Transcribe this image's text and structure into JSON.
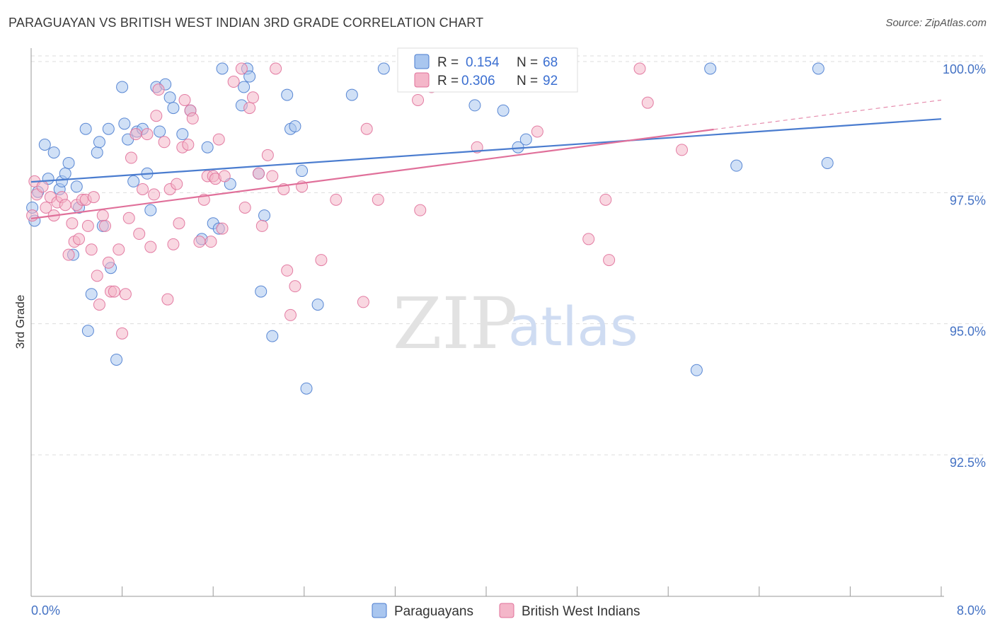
{
  "title": "PARAGUAYAN VS BRITISH WEST INDIAN 3RD GRADE CORRELATION CHART",
  "source": "Source: ZipAtlas.com",
  "watermark": {
    "zip": "ZIP",
    "atlas": "atlas"
  },
  "colors": {
    "blue": "#4a7ccf",
    "blue_fill": "#a9c6ef",
    "pink": "#e0709a",
    "pink_fill": "#f4b6c9",
    "grid": "#dddddd",
    "axis": "#999999"
  },
  "chart_data": {
    "type": "scatter",
    "title": "PARAGUAYAN VS BRITISH WEST INDIAN 3RD GRADE CORRELATION CHART",
    "xlabel": "",
    "ylabel": "3rd Grade",
    "xlim": [
      0.0,
      8.0
    ],
    "ylim": [
      90.0,
      100.5
    ],
    "x_tick_labels": [
      "0.0%",
      "8.0%"
    ],
    "y_ticks": [
      92.5,
      95.0,
      97.5,
      100.0
    ],
    "y_tick_labels": [
      "92.5%",
      "95.0%",
      "97.5%",
      "100.0%"
    ],
    "legend": {
      "items": [
        {
          "r_label": "R =",
          "r": "0.154",
          "n_label": "N =",
          "n": "68"
        },
        {
          "r_label": "R =",
          "r": "0.306",
          "n_label": "N =",
          "n": "92"
        }
      ]
    },
    "series": [
      {
        "name": "Paraguayans",
        "trend": {
          "x0": 0.0,
          "y0": 97.84,
          "x1": 8.0,
          "y1": 99.04,
          "dashed_to": null
        },
        "points": [
          [
            0.01,
            97.35
          ],
          [
            0.03,
            97.1
          ],
          [
            0.06,
            97.65
          ],
          [
            0.12,
            98.55
          ],
          [
            0.15,
            97.9
          ],
          [
            0.2,
            98.4
          ],
          [
            0.25,
            97.7
          ],
          [
            0.27,
            97.85
          ],
          [
            0.3,
            98.0
          ],
          [
            0.33,
            98.2
          ],
          [
            0.37,
            96.45
          ],
          [
            0.4,
            97.75
          ],
          [
            0.42,
            97.35
          ],
          [
            0.48,
            98.85
          ],
          [
            0.5,
            95.0
          ],
          [
            0.53,
            95.7
          ],
          [
            0.58,
            98.4
          ],
          [
            0.6,
            98.6
          ],
          [
            0.63,
            97.0
          ],
          [
            0.68,
            98.85
          ],
          [
            0.7,
            96.2
          ],
          [
            0.75,
            94.45
          ],
          [
            0.8,
            99.65
          ],
          [
            0.82,
            98.95
          ],
          [
            0.85,
            98.65
          ],
          [
            0.9,
            97.85
          ],
          [
            0.93,
            98.8
          ],
          [
            0.98,
            98.85
          ],
          [
            1.02,
            98.0
          ],
          [
            1.05,
            97.3
          ],
          [
            1.1,
            99.65
          ],
          [
            1.13,
            98.8
          ],
          [
            1.18,
            99.7
          ],
          [
            1.22,
            99.45
          ],
          [
            1.25,
            99.25
          ],
          [
            1.33,
            98.75
          ],
          [
            1.4,
            99.2
          ],
          [
            1.5,
            96.75
          ],
          [
            1.55,
            98.5
          ],
          [
            1.6,
            97.05
          ],
          [
            1.65,
            96.95
          ],
          [
            1.68,
            100.0
          ],
          [
            1.75,
            97.8
          ],
          [
            1.85,
            99.3
          ],
          [
            1.87,
            99.65
          ],
          [
            1.9,
            100.0
          ],
          [
            1.92,
            99.85
          ],
          [
            2.0,
            98.0
          ],
          [
            2.02,
            95.75
          ],
          [
            2.05,
            97.2
          ],
          [
            2.12,
            94.9
          ],
          [
            2.25,
            99.5
          ],
          [
            2.28,
            98.85
          ],
          [
            2.32,
            98.9
          ],
          [
            2.38,
            98.05
          ],
          [
            2.42,
            93.9
          ],
          [
            2.52,
            95.5
          ],
          [
            2.82,
            99.5
          ],
          [
            3.1,
            100.0
          ],
          [
            3.9,
            99.3
          ],
          [
            4.15,
            99.2
          ],
          [
            4.28,
            98.5
          ],
          [
            4.35,
            98.65
          ],
          [
            5.85,
            94.25
          ],
          [
            5.97,
            100.0
          ],
          [
            6.2,
            98.15
          ],
          [
            6.92,
            100.0
          ],
          [
            7.0,
            98.2
          ]
        ]
      },
      {
        "name": "British West Indians",
        "trend": {
          "x0": 0.0,
          "y0": 97.14,
          "x1": 6.0,
          "y1": 98.84,
          "dashed_to": [
            8.0,
            99.4
          ]
        },
        "points": [
          [
            0.01,
            97.2
          ],
          [
            0.03,
            97.85
          ],
          [
            0.05,
            97.6
          ],
          [
            0.1,
            97.75
          ],
          [
            0.13,
            97.35
          ],
          [
            0.17,
            97.55
          ],
          [
            0.2,
            97.2
          ],
          [
            0.23,
            97.45
          ],
          [
            0.27,
            97.55
          ],
          [
            0.3,
            97.4
          ],
          [
            0.33,
            96.45
          ],
          [
            0.36,
            97.05
          ],
          [
            0.38,
            96.7
          ],
          [
            0.4,
            97.4
          ],
          [
            0.42,
            96.75
          ],
          [
            0.45,
            97.5
          ],
          [
            0.48,
            97.5
          ],
          [
            0.5,
            97.0
          ],
          [
            0.53,
            96.55
          ],
          [
            0.55,
            97.55
          ],
          [
            0.58,
            96.05
          ],
          [
            0.6,
            95.5
          ],
          [
            0.63,
            97.2
          ],
          [
            0.65,
            97.0
          ],
          [
            0.68,
            96.3
          ],
          [
            0.7,
            95.75
          ],
          [
            0.73,
            95.75
          ],
          [
            0.77,
            96.55
          ],
          [
            0.8,
            94.95
          ],
          [
            0.83,
            95.7
          ],
          [
            0.86,
            97.15
          ],
          [
            0.88,
            98.3
          ],
          [
            0.92,
            98.75
          ],
          [
            0.95,
            96.85
          ],
          [
            0.98,
            97.7
          ],
          [
            1.02,
            98.75
          ],
          [
            1.05,
            96.6
          ],
          [
            1.08,
            97.6
          ],
          [
            1.1,
            99.1
          ],
          [
            1.12,
            99.6
          ],
          [
            1.17,
            98.6
          ],
          [
            1.2,
            95.6
          ],
          [
            1.22,
            97.7
          ],
          [
            1.25,
            96.65
          ],
          [
            1.28,
            97.8
          ],
          [
            1.3,
            97.05
          ],
          [
            1.33,
            98.5
          ],
          [
            1.35,
            99.4
          ],
          [
            1.38,
            98.55
          ],
          [
            1.4,
            99.2
          ],
          [
            1.42,
            99.05
          ],
          [
            1.48,
            96.7
          ],
          [
            1.52,
            97.5
          ],
          [
            1.55,
            97.95
          ],
          [
            1.58,
            96.7
          ],
          [
            1.6,
            97.95
          ],
          [
            1.62,
            97.9
          ],
          [
            1.65,
            98.65
          ],
          [
            1.68,
            96.95
          ],
          [
            1.7,
            97.95
          ],
          [
            1.78,
            99.75
          ],
          [
            1.85,
            100.0
          ],
          [
            1.88,
            97.35
          ],
          [
            1.92,
            99.25
          ],
          [
            1.95,
            99.45
          ],
          [
            2.0,
            98.0
          ],
          [
            2.03,
            97.0
          ],
          [
            2.08,
            98.35
          ],
          [
            2.12,
            97.95
          ],
          [
            2.15,
            100.0
          ],
          [
            2.22,
            97.7
          ],
          [
            2.25,
            96.15
          ],
          [
            2.28,
            95.3
          ],
          [
            2.32,
            95.85
          ],
          [
            2.38,
            97.75
          ],
          [
            2.55,
            96.35
          ],
          [
            2.68,
            97.5
          ],
          [
            2.92,
            95.55
          ],
          [
            2.95,
            98.85
          ],
          [
            3.05,
            97.5
          ],
          [
            3.4,
            99.4
          ],
          [
            3.42,
            97.3
          ],
          [
            3.52,
            99.65
          ],
          [
            3.92,
            98.5
          ],
          [
            4.15,
            100.0
          ],
          [
            4.45,
            98.8
          ],
          [
            4.9,
            96.75
          ],
          [
            5.05,
            97.5
          ],
          [
            5.08,
            96.35
          ],
          [
            5.35,
            100.0
          ],
          [
            5.42,
            99.35
          ],
          [
            5.72,
            98.45
          ]
        ]
      }
    ]
  }
}
